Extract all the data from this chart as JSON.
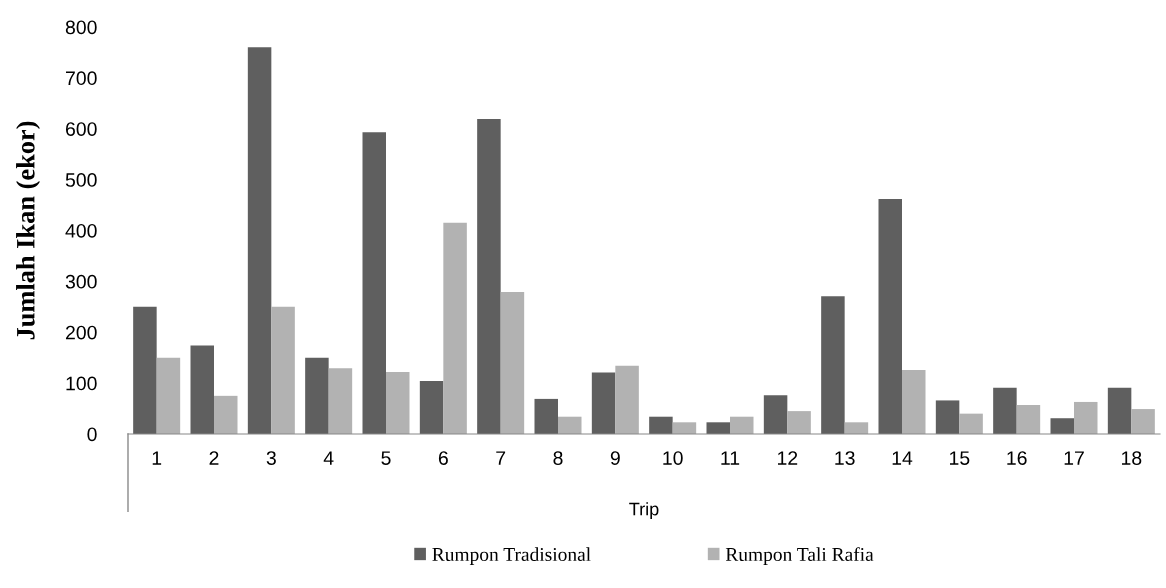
{
  "chart_data": {
    "type": "bar",
    "xlabel": "Trip",
    "ylabel": "Jumlah Ikan (ekor)",
    "categories": [
      "1",
      "2",
      "3",
      "4",
      "5",
      "6",
      "7",
      "8",
      "9",
      "10",
      "11",
      "12",
      "13",
      "14",
      "15",
      "16",
      "17",
      "18"
    ],
    "series": [
      {
        "name": "Rumpon Tradisional",
        "color": "#5f5f5f",
        "values": [
          250,
          174,
          760,
          150,
          593,
          104,
          619,
          69,
          121,
          34,
          23,
          76,
          271,
          462,
          66,
          91,
          31,
          91
        ]
      },
      {
        "name": "Rumpon Tali Rafia",
        "color": "#b2b2b2",
        "values": [
          150,
          75,
          250,
          129,
          122,
          415,
          279,
          34,
          134,
          23,
          34,
          45,
          23,
          126,
          40,
          57,
          63,
          49
        ]
      }
    ],
    "ylim": [
      0,
      800
    ],
    "yticks": [
      0,
      100,
      200,
      300,
      400,
      500,
      600,
      700,
      800
    ],
    "grid": false,
    "legend": "bottom"
  }
}
